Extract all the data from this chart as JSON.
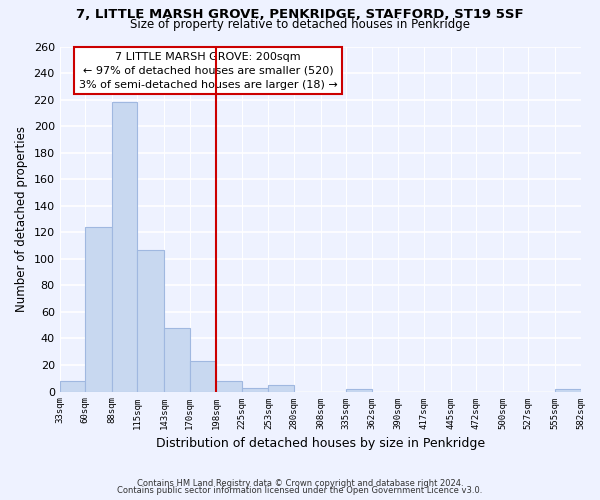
{
  "title": "7, LITTLE MARSH GROVE, PENKRIDGE, STAFFORD, ST19 5SF",
  "subtitle": "Size of property relative to detached houses in Penkridge",
  "xlabel": "Distribution of detached houses by size in Penkridge",
  "ylabel": "Number of detached properties",
  "bar_color": "#c8d8f0",
  "bar_edge_color": "#a0b8e0",
  "vline_x": 198,
  "vline_color": "#cc0000",
  "annotation_line1": "7 LITTLE MARSH GROVE: 200sqm",
  "annotation_line2": "← 97% of detached houses are smaller (520)",
  "annotation_line3": "3% of semi-detached houses are larger (18) →",
  "annotation_box_color": "#ffffff",
  "annotation_box_edge": "#cc0000",
  "bins": [
    33,
    60,
    88,
    115,
    143,
    170,
    198,
    225,
    253,
    280,
    308,
    335,
    362,
    390,
    417,
    445,
    472,
    500,
    527,
    555,
    582
  ],
  "counts": [
    8,
    124,
    218,
    107,
    48,
    23,
    8,
    3,
    5,
    0,
    0,
    2,
    0,
    0,
    0,
    0,
    0,
    0,
    0,
    2
  ],
  "ylim": [
    0,
    260
  ],
  "yticks": [
    0,
    20,
    40,
    60,
    80,
    100,
    120,
    140,
    160,
    180,
    200,
    220,
    240,
    260
  ],
  "footnote1": "Contains HM Land Registry data © Crown copyright and database right 2024.",
  "footnote2": "Contains public sector information licensed under the Open Government Licence v3.0.",
  "bg_color": "#eef2ff"
}
